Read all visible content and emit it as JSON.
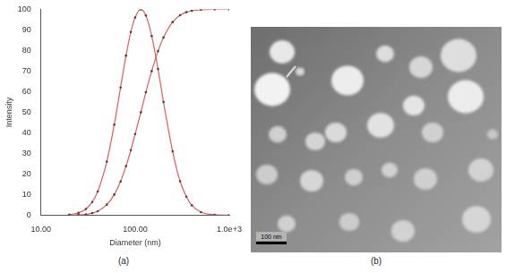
{
  "chart_data": {
    "type": "line",
    "x_label": "Diameter (nm)",
    "y_label": "Intensity",
    "log": "x",
    "x": [
      20,
      25,
      30,
      35,
      40,
      50,
      60,
      70,
      80,
      90,
      100,
      115,
      130,
      150,
      175,
      200,
      250,
      300,
      350,
      400,
      500,
      700,
      1000
    ],
    "series": [
      {
        "color": "#e05a5a",
        "marker": "circle",
        "line_style": "solid",
        "values": [
          0.3,
          1.1,
          3,
          6.4,
          11.5,
          26,
          44,
          62,
          77.5,
          89,
          96,
          100,
          97,
          87,
          71,
          55,
          31,
          16.5,
          9,
          4.8,
          1.5,
          0.2,
          0
        ]
      },
      {
        "color": "#e05a5a",
        "marker": "circle",
        "line_style": "solid",
        "values": [
          0,
          0.1,
          0.4,
          1,
          1.9,
          5.1,
          10,
          16.4,
          23.8,
          31.6,
          39.4,
          50,
          59.7,
          70,
          79.7,
          86.3,
          93.8,
          97.1,
          98.6,
          99.3,
          99.8,
          100,
          100
        ]
      }
    ],
    "xlim": [
      10,
      1000
    ],
    "xticks": [
      {
        "value": 10,
        "label": "10.00"
      },
      {
        "value": 100,
        "label": "100.00"
      },
      {
        "value": 1000,
        "label": "1.0e+3"
      }
    ],
    "ylim": [
      0,
      100
    ],
    "yticks": [
      0,
      10,
      20,
      30,
      40,
      50,
      60,
      70,
      80,
      90,
      100
    ],
    "grid": false
  },
  "panel_labels": [
    "(a)",
    "(b)"
  ],
  "image": {
    "scale_bar": "100 nm"
  }
}
